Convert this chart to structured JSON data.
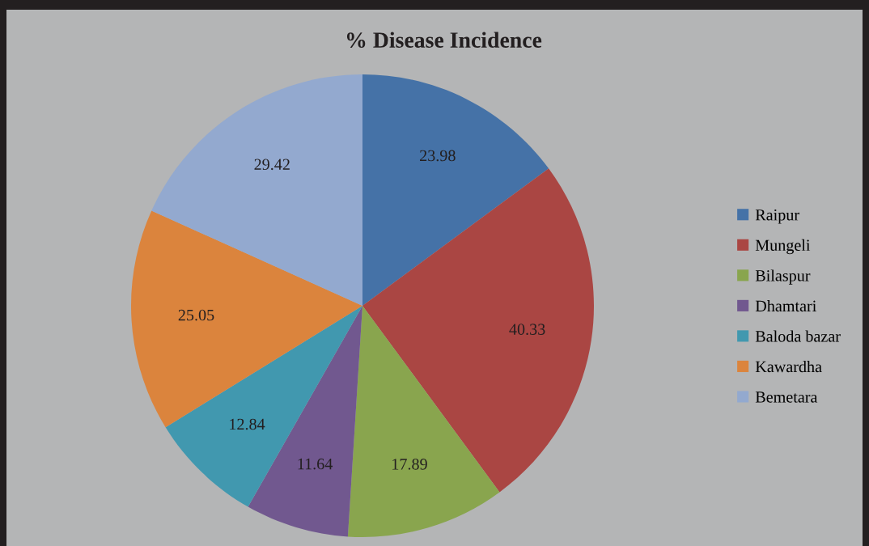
{
  "chart_data": {
    "type": "pie",
    "title": "% Disease Incidence",
    "categories": [
      "Raipur",
      "Mungeli",
      "Bilaspur",
      "Dhamtari",
      "Baloda bazar",
      "Kawardha",
      "Bemetara"
    ],
    "values": [
      23.98,
      40.33,
      17.89,
      11.64,
      12.84,
      25.05,
      29.42
    ],
    "colors": [
      "#4572a7",
      "#aa4643",
      "#89a54e",
      "#71588f",
      "#4198af",
      "#db843d",
      "#93a9cf"
    ],
    "data_labels": true,
    "legend": "right"
  }
}
